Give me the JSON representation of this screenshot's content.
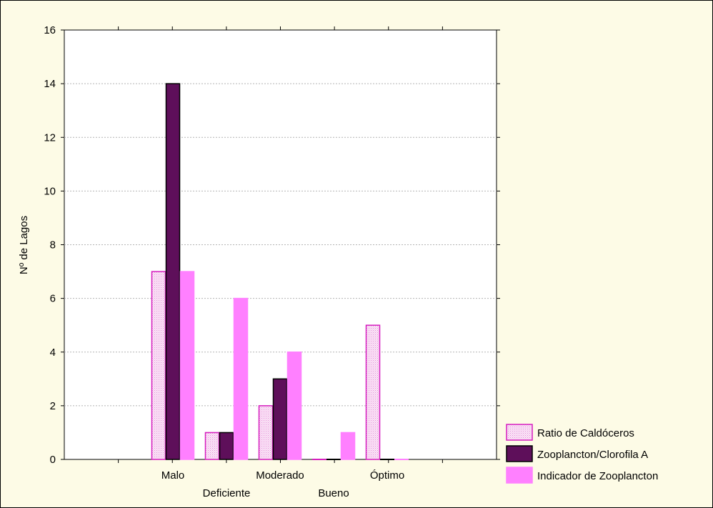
{
  "chart_data": {
    "type": "bar",
    "title": "",
    "xlabel": "",
    "ylabel": "Nº de Lagos",
    "ylim": [
      0,
      16
    ],
    "yticks": [
      0,
      2,
      4,
      6,
      8,
      10,
      12,
      14,
      16
    ],
    "categories": [
      "Malo",
      "Deficiente",
      "Moderado",
      "Bueno",
      "Óptimo"
    ],
    "grid": true,
    "legend_position": "bottom-right",
    "series": [
      {
        "name": "Ratio de Caldóceros",
        "values": [
          7,
          1,
          2,
          0,
          5
        ],
        "color": "#f7c8ef",
        "stroke": "#d61fbf",
        "pattern": "dotted"
      },
      {
        "name": "Zooplancton/Clorofila A",
        "values": [
          14,
          1,
          3,
          0,
          0
        ],
        "color": "#5e0f5a",
        "stroke": "#000000",
        "pattern": "solid"
      },
      {
        "name": "Indicador de Zooplancton",
        "values": [
          7,
          6,
          4,
          1,
          0
        ],
        "color": "#ff80ff",
        "stroke": "#ff80ff",
        "pattern": "solid"
      }
    ],
    "colors": {
      "background": "#fdfbe6",
      "plot_area": "#ffffff",
      "grid": "#b4b4b4"
    }
  }
}
